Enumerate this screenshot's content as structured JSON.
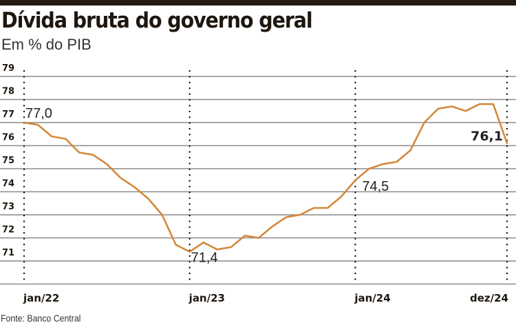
{
  "header": {
    "title": "Dívida bruta do governo geral",
    "subtitle": "Em % do PIB"
  },
  "footer": {
    "source": "Fonte: Banco Central"
  },
  "colors": {
    "line": "#d4873a",
    "grid": "#8a8a8a",
    "text": "#1e1710",
    "top_bar": "#231a12"
  },
  "chart_data": {
    "type": "line",
    "title": "Dívida bruta do governo geral",
    "subtitle": "Em % do PIB",
    "xlabel": "",
    "ylabel": "",
    "ylim": [
      70,
      80
    ],
    "yticks": [
      71,
      72,
      73,
      74,
      75,
      76,
      77,
      78,
      79
    ],
    "xtick_labels": [
      "jan/22",
      "jan/23",
      "jan/24",
      "dez/24"
    ],
    "grid": true,
    "legend": null,
    "x": [
      "jan/22",
      "fev/22",
      "mar/22",
      "abr/22",
      "mai/22",
      "jun/22",
      "jul/22",
      "ago/22",
      "set/22",
      "out/22",
      "nov/22",
      "dez/22",
      "jan/23",
      "fev/23",
      "mar/23",
      "abr/23",
      "mai/23",
      "jun/23",
      "jul/23",
      "ago/23",
      "set/23",
      "out/23",
      "nov/23",
      "dez/23",
      "jan/24",
      "fev/24",
      "mar/24",
      "abr/24",
      "mai/24",
      "jun/24",
      "jul/24",
      "ago/24",
      "set/24",
      "out/24",
      "nov/24",
      "dez/24"
    ],
    "series": [
      {
        "name": "Dívida bruta do governo geral (% do PIB)",
        "values": [
          77.0,
          76.9,
          76.4,
          76.3,
          75.7,
          75.6,
          75.2,
          74.6,
          74.2,
          73.7,
          73.0,
          71.7,
          71.4,
          71.8,
          71.5,
          71.6,
          72.1,
          72.0,
          72.5,
          72.9,
          73.0,
          73.3,
          73.3,
          73.8,
          74.5,
          75.0,
          75.2,
          75.3,
          75.8,
          77.0,
          77.6,
          77.7,
          77.5,
          77.8,
          77.8,
          76.1
        ]
      }
    ],
    "annotations": [
      {
        "x": "jan/22",
        "label": "77,0",
        "bold": false
      },
      {
        "x": "jan/23",
        "label": "71,4",
        "bold": false
      },
      {
        "x": "jan/24",
        "label": "74,5",
        "bold": false
      },
      {
        "x": "dez/24",
        "label": "76,1",
        "bold": true
      }
    ]
  }
}
